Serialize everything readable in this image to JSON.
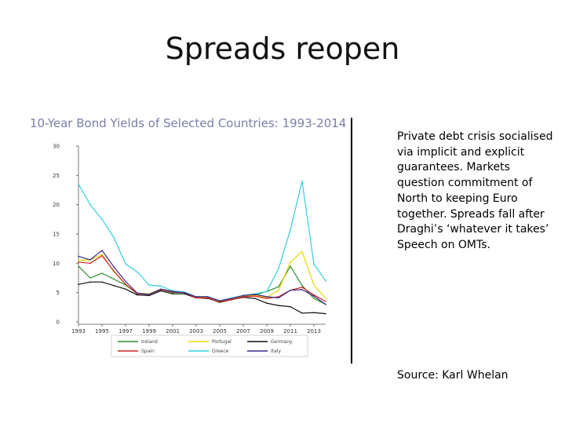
{
  "slide": {
    "title": "Spreads reopen",
    "body": "Private debt crisis socialised via implicit and explicit guarantees. Markets question commitment of North to keeping Euro together. Spreads fall after Draghi’s ‘whatever it takes’ Speech on OMTs.",
    "source": "Source: Karl Whelan"
  },
  "chart_data": {
    "type": "line",
    "title": "10-Year Bond Yields of Selected Countries: 1993-2014",
    "xlabel": "",
    "ylabel": "",
    "xlim": [
      1993,
      2014
    ],
    "ylim": [
      0,
      30
    ],
    "x_ticks": [
      1993,
      1995,
      1997,
      1999,
      2001,
      2003,
      2005,
      2007,
      2009,
      2011,
      2013
    ],
    "y_ticks": [
      0,
      5,
      10,
      15,
      20,
      25,
      30
    ],
    "grid": false,
    "legend_position": "bottom",
    "x": [
      1993,
      1994,
      1995,
      1996,
      1997,
      1998,
      1999,
      2000,
      2001,
      2002,
      2003,
      2004,
      2005,
      2006,
      2007,
      2008,
      2009,
      2010,
      2011,
      2012,
      2013,
      2014
    ],
    "series": [
      {
        "name": "Ireland",
        "color": "#2e8b2e",
        "values": [
          9.5,
          7.5,
          8.3,
          7.3,
          6.3,
          4.8,
          4.7,
          5.5,
          5.0,
          5.0,
          4.1,
          4.1,
          3.3,
          3.8,
          4.3,
          4.6,
          5.2,
          6.0,
          9.5,
          6.2,
          4.0,
          3.0
        ]
      },
      {
        "name": "Portugal",
        "color": "#e8d800",
        "values": [
          10.5,
          10.6,
          11.5,
          8.6,
          6.4,
          4.9,
          4.8,
          5.6,
          5.2,
          5.0,
          4.2,
          4.1,
          3.4,
          3.9,
          4.4,
          4.5,
          4.2,
          5.4,
          10.2,
          12.0,
          6.3,
          4.0
        ]
      },
      {
        "name": "Germany",
        "color": "#111111",
        "values": [
          6.4,
          6.8,
          6.8,
          6.2,
          5.6,
          4.6,
          4.5,
          5.3,
          4.8,
          4.8,
          4.1,
          4.0,
          3.4,
          3.8,
          4.2,
          4.0,
          3.2,
          2.8,
          2.6,
          1.5,
          1.6,
          1.4
        ]
      },
      {
        "name": "Spain",
        "color": "#d42020",
        "values": [
          10.2,
          10.0,
          11.3,
          8.7,
          6.4,
          4.8,
          4.7,
          5.5,
          5.1,
          5.0,
          4.1,
          4.1,
          3.4,
          3.8,
          4.3,
          4.4,
          4.0,
          4.3,
          5.4,
          5.9,
          4.6,
          3.5
        ]
      },
      {
        "name": "Greece",
        "color": "#30d0e0",
        "values": [
          23.5,
          20.0,
          17.5,
          14.4,
          9.9,
          8.5,
          6.3,
          6.1,
          5.3,
          5.1,
          4.3,
          4.3,
          3.6,
          4.1,
          4.5,
          4.8,
          5.2,
          9.1,
          15.7,
          24.0,
          9.9,
          7.0
        ]
      },
      {
        "name": "Italy",
        "color": "#3a2a8a",
        "values": [
          11.2,
          10.6,
          12.2,
          9.4,
          6.9,
          4.9,
          4.7,
          5.6,
          5.2,
          5.0,
          4.3,
          4.3,
          3.6,
          4.0,
          4.5,
          4.7,
          4.3,
          4.1,
          5.4,
          5.5,
          4.4,
          3.0
        ]
      }
    ]
  }
}
